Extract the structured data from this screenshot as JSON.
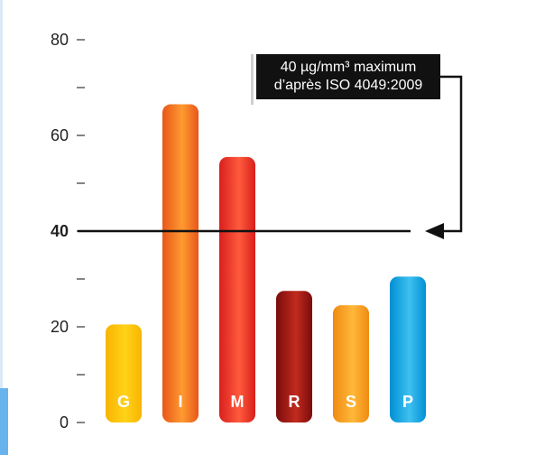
{
  "chart_data": {
    "type": "bar",
    "categories": [
      "G",
      "I",
      "M",
      "R",
      "S",
      "P"
    ],
    "values": [
      20.5,
      66.5,
      55.5,
      27.5,
      24.5,
      30.5
    ],
    "colors": [
      [
        "#f8b400",
        "#ffd21a"
      ],
      [
        "#e8561a",
        "#ff9a30"
      ],
      [
        "#d81f1c",
        "#ff5a3c"
      ],
      [
        "#7a0c0c",
        "#c22a1e"
      ],
      [
        "#f08a12",
        "#ffb83a"
      ],
      [
        "#0090d4",
        "#3fc0f0"
      ]
    ],
    "ylim": [
      0,
      80
    ],
    "yticks_major": [
      {
        "value": 0,
        "label": "0",
        "bold": false
      },
      {
        "value": 20,
        "label": "20",
        "bold": false
      },
      {
        "value": 40,
        "label": "40",
        "bold": true
      },
      {
        "value": 60,
        "label": "60",
        "bold": false
      },
      {
        "value": 80,
        "label": "80",
        "bold": false
      }
    ],
    "yticks_minor": [
      10,
      30,
      50,
      70
    ],
    "threshold": 40,
    "annotation": {
      "line1": "40 µg/mm³ maximum",
      "line2": "d’après ISO 4049:2009"
    }
  }
}
